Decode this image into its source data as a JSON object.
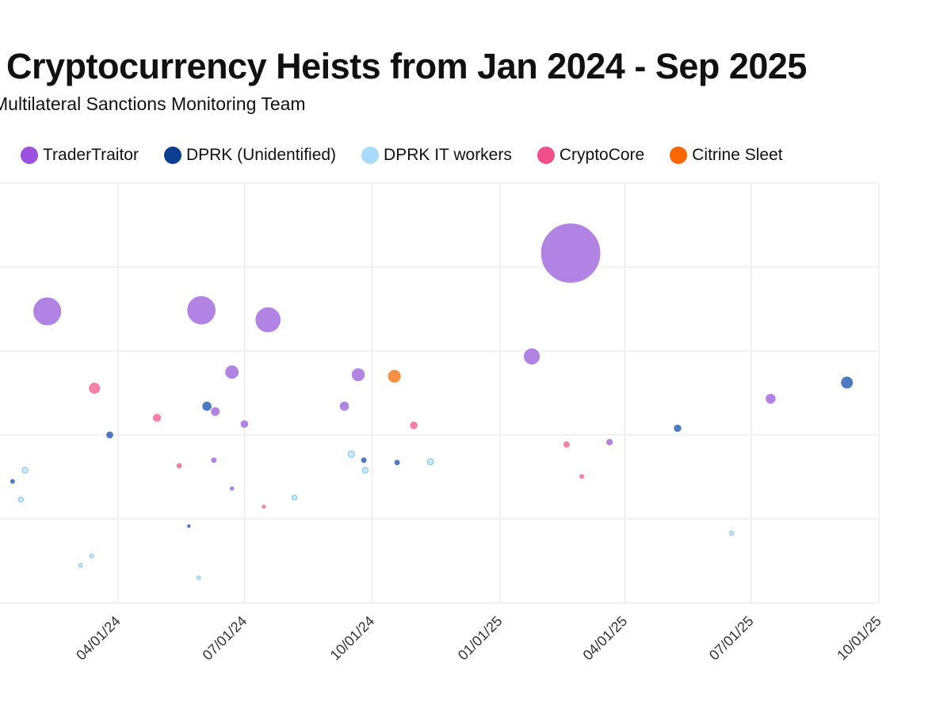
{
  "chart_data": {
    "type": "scatter",
    "subtype": "bubble",
    "title": "Cryptocurrency Heists from Jan 2024 - Sep 2025",
    "subtitle": "Multilateral Sanctions Monitoring Team",
    "xlabel": "",
    "ylabel": "",
    "x_type": "date",
    "y_scale": "log",
    "ylim": [
      100000,
      10000000000
    ],
    "xlim": [
      "2024-01-01",
      "2025-10-01"
    ],
    "x_ticks": [
      "04/01/24",
      "07/01/24",
      "10/01/24",
      "01/01/25",
      "04/01/25",
      "07/01/25",
      "10/01/25"
    ],
    "x_tick_dates": [
      "2024-04-01",
      "2024-07-01",
      "2024-10-01",
      "2025-01-01",
      "2025-04-01",
      "2025-07-01",
      "2025-10-01"
    ],
    "grid": true,
    "legend_position": "top",
    "bubble_size_encodes": "y value",
    "series": [
      {
        "name": "TraderTraitor",
        "color": "#9b51e0",
        "points": [
          [
            "2024-02-10",
            296000000
          ],
          [
            "2024-05-31",
            305000000
          ],
          [
            "2024-07-18",
            235000000
          ],
          [
            "2024-06-22",
            56000000
          ],
          [
            "2024-06-10",
            19000000
          ],
          [
            "2024-07-01",
            13500000
          ],
          [
            "2024-06-09",
            5000000
          ],
          [
            "2024-06-22",
            2300000
          ],
          [
            "2024-09-21",
            52000000
          ],
          [
            "2024-09-11",
            22000000
          ],
          [
            "2025-01-24",
            86000000
          ],
          [
            "2025-02-21",
            1460000000
          ],
          [
            "2025-03-21",
            8200000
          ],
          [
            "2025-07-15",
            27000000
          ]
        ]
      },
      {
        "name": "DPRK (Unidentified)",
        "color": "#0b3d91",
        "points": [
          [
            "2024-01-16",
            2800000
          ],
          [
            "2024-03-26",
            10000000
          ],
          [
            "2024-06-04",
            22000000
          ],
          [
            "2024-05-22",
            820000
          ],
          [
            "2024-09-25",
            5000000
          ],
          [
            "2024-10-19",
            4700000
          ],
          [
            "2025-05-09",
            12000000
          ],
          [
            "2025-09-08",
            42000000
          ]
        ]
      },
      {
        "name": "DPRK IT workers",
        "color": "#a9d9fb",
        "points": [
          [
            "2024-01-25",
            3800000
          ],
          [
            "2024-01-22",
            1700000
          ],
          [
            "2024-03-05",
            280000
          ],
          [
            "2024-03-13",
            360000
          ],
          [
            "2024-05-29",
            200000
          ],
          [
            "2024-08-06",
            1800000
          ],
          [
            "2024-09-16",
            5900000
          ],
          [
            "2024-09-26",
            3800000
          ],
          [
            "2024-11-12",
            4800000
          ],
          [
            "2025-06-17",
            675000
          ]
        ]
      },
      {
        "name": "CryptoCore",
        "color": "#f0508a",
        "points": [
          [
            "2024-03-15",
            36000000
          ],
          [
            "2024-04-29",
            16000000
          ],
          [
            "2024-05-15",
            4300000
          ],
          [
            "2024-07-15",
            1400000
          ],
          [
            "2024-10-31",
            13000000
          ],
          [
            "2025-02-18",
            7700000
          ],
          [
            "2025-03-01",
            3200000
          ]
        ]
      },
      {
        "name": "Citrine Sleet",
        "color": "#ff6600",
        "points": [
          [
            "2024-10-17",
            50000000
          ]
        ]
      }
    ]
  }
}
